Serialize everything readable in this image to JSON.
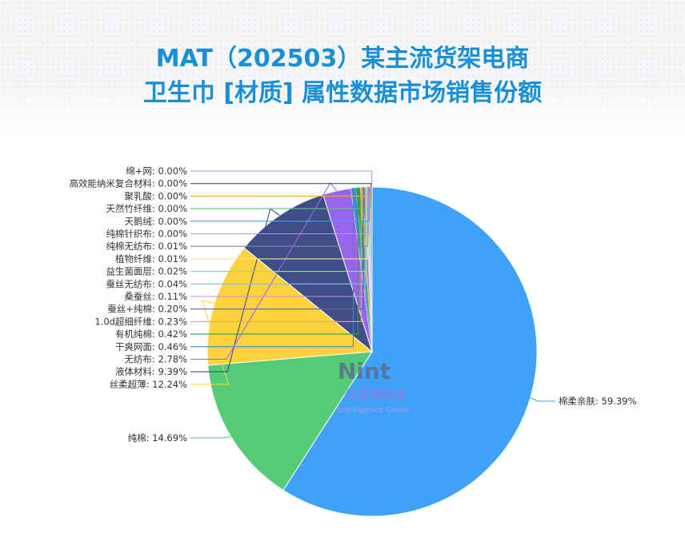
{
  "title_line1": "MAT（202503）某主流货架电商",
  "title_line2": "卫生巾 [材质] 属性数据市场销售份额",
  "watermark": {
    "brand": "Nint",
    "cn": "任拓销报通",
    "en": "Intelligence Cloud"
  },
  "chart_data": {
    "type": "pie",
    "title": "MAT（202503）某主流货架电商 卫生巾 [材质] 属性数据市场销售份额",
    "unit": "%",
    "slices": [
      {
        "name": "棉柔亲肤",
        "value": 59.39,
        "label": "棉柔亲肤: 59.39%",
        "color": "#3fa2f7"
      },
      {
        "name": "纯棉",
        "value": 14.69,
        "label": "纯棉: 14.69%",
        "color": "#53cb77"
      },
      {
        "name": "丝柔超薄",
        "value": 12.24,
        "label": "丝柔超薄: 12.24%",
        "color": "#fdd33d"
      },
      {
        "name": "液体材料",
        "value": 9.39,
        "label": "液体材料: 9.39%",
        "color": "#404e87"
      },
      {
        "name": "无纺布",
        "value": 2.78,
        "label": "无纺布: 2.78%",
        "color": "#9a65ee"
      },
      {
        "name": "干爽网面",
        "value": 0.46,
        "label": "干爽网面: 0.46%",
        "color": "#3d8ad1"
      },
      {
        "name": "有机纯棉",
        "value": 0.42,
        "label": "有机纯棉: 0.42%",
        "color": "#2d9e53"
      },
      {
        "name": "1.0d超细纤维",
        "value": 0.23,
        "label": "1.0d超细纤维: 0.23%",
        "color": "#e8b23a"
      },
      {
        "name": "蚕丝+纯棉",
        "value": 0.2,
        "label": "蚕丝+纯棉: 0.20%",
        "color": "#5b6a9e"
      },
      {
        "name": "桑蚕丝",
        "value": 0.11,
        "label": "桑蚕丝: 0.11%",
        "color": "#c58ef0"
      },
      {
        "name": "蚕丝无纺布",
        "value": 0.04,
        "label": "蚕丝无纺布: 0.04%",
        "color": "#7cc1f7"
      },
      {
        "name": "益生菌面层",
        "value": 0.02,
        "label": "益生菌面层: 0.02%",
        "color": "#8fdca5"
      },
      {
        "name": "植物纤维",
        "value": 0.01,
        "label": "植物纤维: 0.01%",
        "color": "#fbe38a"
      },
      {
        "name": "纯棉无纺布",
        "value": 0.01,
        "label": "纯棉无纺布: 0.01%",
        "color": "#7b86b3"
      },
      {
        "name": "纯棉针织布",
        "value": 0.0,
        "label": "纯棉针织布: 0.00%",
        "color": "#b995f2"
      },
      {
        "name": "天鹅绒",
        "value": 0.0,
        "label": "天鹅绒: 0.00%",
        "color": "#3fa2f7"
      },
      {
        "name": "天然竹纤维",
        "value": 0.0,
        "label": "天然竹纤维: 0.00%",
        "color": "#53cb77"
      },
      {
        "name": "聚乳酸",
        "value": 0.0,
        "label": "聚乳酸: 0.00%",
        "color": "#f2a43a"
      },
      {
        "name": "高效能纳米复合材料",
        "value": 0.0,
        "label": "高效能纳米复合材料: 0.00%",
        "color": "#404e87"
      },
      {
        "name": "绵+网",
        "value": 0.0,
        "label": "绵+网: 0.00%",
        "color": "#d28ef0"
      }
    ]
  }
}
